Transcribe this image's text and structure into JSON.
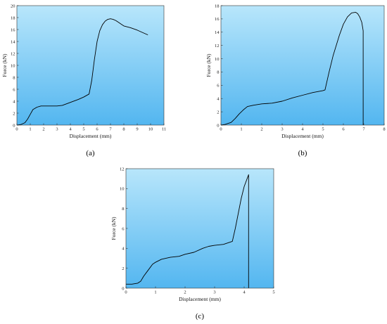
{
  "chart_data": [
    {
      "type": "line",
      "panel_label": "(a)",
      "xlabel": "Displacement (mm)",
      "ylabel": "Force (kN)",
      "xlim": [
        0,
        11
      ],
      "ylim": [
        0,
        20
      ],
      "xticks": [
        0,
        1,
        2,
        3,
        4,
        5,
        6,
        7,
        8,
        9,
        10,
        11
      ],
      "yticks": [
        0,
        2,
        4,
        6,
        8,
        10,
        12,
        14,
        16,
        18,
        20
      ],
      "background_gradient": [
        "#b8e6fb",
        "#53b6f0"
      ],
      "line_color": "#000000",
      "x": [
        0,
        0.3,
        0.6,
        0.8,
        1.0,
        1.2,
        1.5,
        1.8,
        2.5,
        3.0,
        3.4,
        4.0,
        4.6,
        5.0,
        5.4,
        5.6,
        5.8,
        6.0,
        6.2,
        6.4,
        6.6,
        6.8,
        7.0,
        7.2,
        7.4,
        7.6,
        7.8,
        8.0,
        8.5,
        9.0,
        9.5,
        9.8
      ],
      "y": [
        0,
        0.1,
        0.4,
        1.0,
        1.8,
        2.6,
        3.0,
        3.2,
        3.2,
        3.2,
        3.3,
        3.8,
        4.3,
        4.7,
        5.2,
        7.5,
        11.0,
        14.0,
        15.8,
        16.8,
        17.4,
        17.7,
        17.8,
        17.7,
        17.5,
        17.2,
        16.9,
        16.6,
        16.3,
        15.9,
        15.4,
        15.1
      ]
    },
    {
      "type": "line",
      "panel_label": "(b)",
      "xlabel": "Displacement (mm)",
      "ylabel": "Force (kN)",
      "xlim": [
        0,
        8
      ],
      "ylim": [
        0,
        18
      ],
      "xticks": [
        0,
        1,
        2,
        3,
        4,
        5,
        6,
        7,
        8
      ],
      "yticks": [
        0,
        2,
        4,
        6,
        8,
        10,
        12,
        14,
        16,
        18
      ],
      "background_gradient": [
        "#b8e6fb",
        "#53b6f0"
      ],
      "line_color": "#000000",
      "x": [
        0,
        0.2,
        0.5,
        0.7,
        0.9,
        1.1,
        1.3,
        1.6,
        2.0,
        2.5,
        3.0,
        3.5,
        4.0,
        4.5,
        5.0,
        5.1,
        5.3,
        5.5,
        5.8,
        6.0,
        6.2,
        6.4,
        6.6,
        6.7,
        6.8,
        6.9,
        6.95,
        6.97,
        6.97
      ],
      "y": [
        0,
        0.1,
        0.4,
        1.0,
        1.7,
        2.3,
        2.8,
        3.0,
        3.2,
        3.3,
        3.6,
        4.1,
        4.5,
        4.9,
        5.2,
        5.3,
        8.0,
        10.5,
        13.5,
        15.2,
        16.3,
        16.9,
        17.0,
        16.8,
        16.3,
        15.5,
        14.6,
        14.2,
        0
      ]
    },
    {
      "type": "line",
      "panel_label": "(c)",
      "xlabel": "Displacement (mm)",
      "ylabel": "Force (kN)",
      "xlim": [
        0,
        5
      ],
      "ylim": [
        0,
        12
      ],
      "xticks": [
        0,
        1,
        2,
        3,
        4,
        5
      ],
      "yticks": [
        0,
        2,
        4,
        6,
        8,
        10,
        12
      ],
      "background_gradient": [
        "#b8e6fb",
        "#53b6f0"
      ],
      "line_color": "#000000",
      "x": [
        0,
        0.2,
        0.4,
        0.5,
        0.6,
        0.7,
        0.8,
        0.9,
        1.0,
        1.2,
        1.5,
        1.8,
        2.0,
        2.3,
        2.6,
        2.8,
        3.0,
        3.3,
        3.6,
        3.7,
        3.8,
        3.9,
        4.0,
        4.1,
        4.15,
        4.15
      ],
      "y": [
        0.4,
        0.4,
        0.5,
        0.7,
        1.2,
        1.6,
        2.0,
        2.4,
        2.6,
        2.9,
        3.1,
        3.2,
        3.4,
        3.6,
        4.0,
        4.2,
        4.3,
        4.4,
        4.7,
        6.0,
        7.5,
        9.0,
        10.2,
        11.0,
        11.4,
        0
      ]
    }
  ]
}
